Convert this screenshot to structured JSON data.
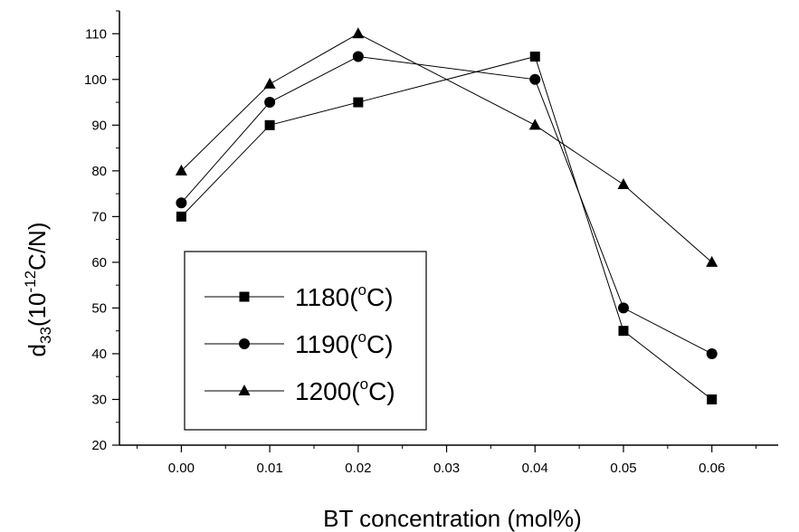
{
  "chart_data": {
    "type": "line",
    "xlabel": "BT concentration (mol%)",
    "ylabel": {
      "base": "d",
      "sub": "33",
      "open": "(10",
      "sup": "-12",
      "unit": "C/N)"
    },
    "xlim": [
      -0.007,
      0.0675
    ],
    "ylim": [
      20,
      115
    ],
    "x_ticks": [
      0.0,
      0.01,
      0.02,
      0.03,
      0.04,
      0.05,
      0.06
    ],
    "x_tick_labels": [
      "0.00",
      "0.01",
      "0.02",
      "0.03",
      "0.04",
      "0.05",
      "0.06"
    ],
    "y_ticks": [
      20,
      30,
      40,
      50,
      60,
      70,
      80,
      90,
      100,
      110
    ],
    "y_tick_labels": [
      "20",
      "30",
      "40",
      "50",
      "60",
      "70",
      "80",
      "90",
      "100",
      "110"
    ],
    "grid": false,
    "legend_position": "bottom-left",
    "series": [
      {
        "name": "1180(°C)",
        "name_main": "1180(",
        "name_sup": "o",
        "name_end": "C)",
        "marker": "square",
        "x": [
          0.0,
          0.01,
          0.02,
          0.04,
          0.05,
          0.06
        ],
        "y": [
          70,
          90,
          95,
          105,
          45,
          30
        ]
      },
      {
        "name": "1190(°C)",
        "name_main": "1190(",
        "name_sup": "o",
        "name_end": "C)",
        "marker": "circle",
        "x": [
          0.0,
          0.01,
          0.02,
          0.04,
          0.05,
          0.06
        ],
        "y": [
          73,
          95,
          105,
          100,
          50,
          40
        ]
      },
      {
        "name": "1200(°C)",
        "name_main": "1200(",
        "name_sup": "o",
        "name_end": "C)",
        "marker": "triangle",
        "x": [
          0.0,
          0.01,
          0.02,
          0.04,
          0.05,
          0.06
        ],
        "y": [
          80,
          99,
          110,
          90,
          77,
          60
        ]
      }
    ]
  }
}
